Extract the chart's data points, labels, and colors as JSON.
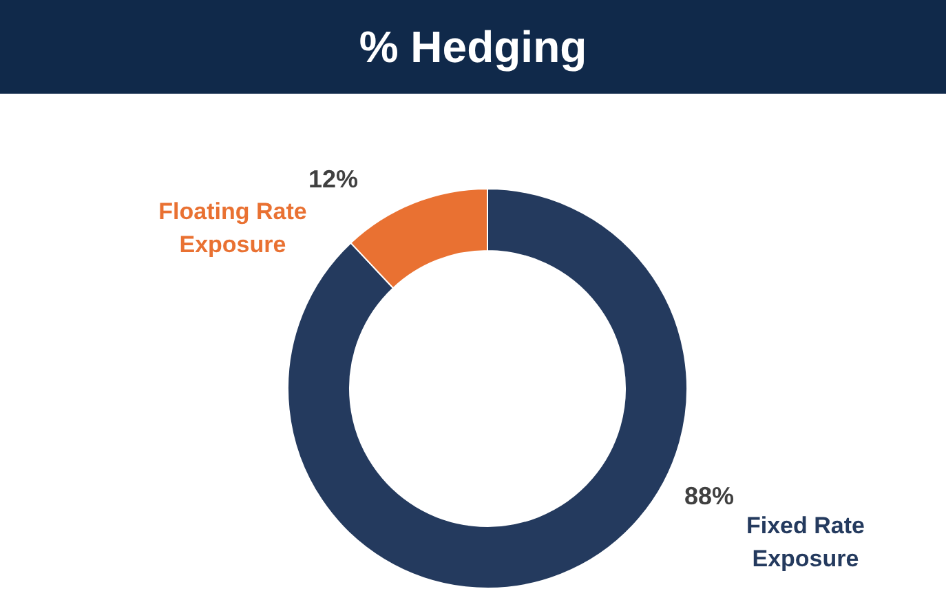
{
  "chart_data": {
    "type": "donut",
    "title": "% Hedging",
    "categories": [
      "Fixed Rate Exposure",
      "Floating Rate Exposure"
    ],
    "values": [
      88,
      12
    ],
    "colors": [
      "#243a5e",
      "#e97132"
    ],
    "value_labels": [
      "88%",
      "12%"
    ]
  }
}
